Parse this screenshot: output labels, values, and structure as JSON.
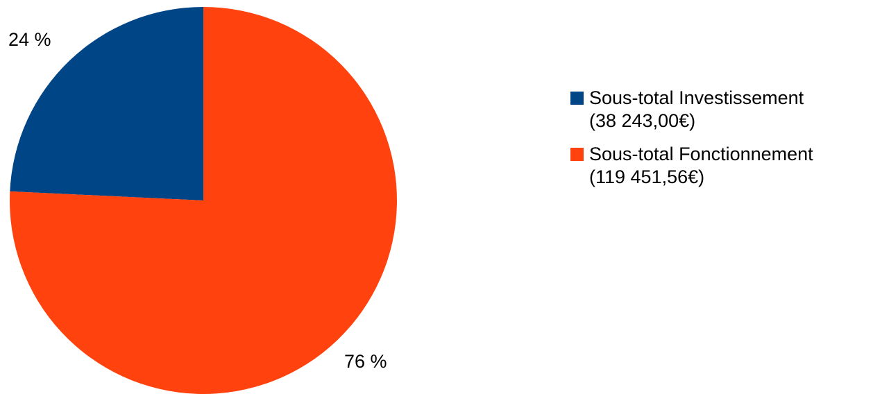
{
  "chart_data": {
    "type": "pie",
    "title": "",
    "slices": [
      {
        "name": "Sous-total Investissement",
        "amount_label": "(38 243,00€)",
        "value": 38243.0,
        "percent_label": "24 %",
        "color": "#004586"
      },
      {
        "name": "Sous-total Fonctionnement",
        "amount_label": "(119 451,56€)",
        "value": 119451.56,
        "percent_label": "76 %",
        "color": "#ff420e"
      }
    ],
    "legend_position": "right"
  }
}
